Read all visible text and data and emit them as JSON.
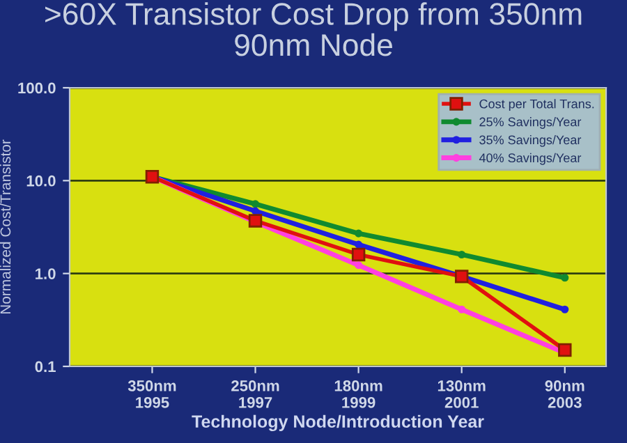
{
  "chart_data": {
    "type": "line",
    "title": ">60X Transistor Cost Drop from 350nm\n90nm Node",
    "xlabel": "Technology Node/Introduction Year",
    "ylabel": "Normalized Cost/Transistor",
    "categories": [
      "350nm\n1995",
      "250nm\n1997",
      "180nm\n1999",
      "130nm\n2001",
      "90nm\n2003"
    ],
    "series": [
      {
        "name": "Cost per Total Trans.",
        "color": "#e01010",
        "marker": "square",
        "values": [
          11,
          3.7,
          1.6,
          0.93,
          0.15
        ]
      },
      {
        "name": "25% Savings/Year",
        "color": "#108a30",
        "marker": "circle",
        "values": [
          11,
          5.6,
          2.7,
          1.6,
          0.9
        ]
      },
      {
        "name": "35% Savings/Year",
        "color": "#2020e0",
        "marker": "circle",
        "values": [
          11,
          4.7,
          2.05,
          0.93,
          0.41
        ]
      },
      {
        "name": "40% Savings/Year",
        "color": "#ff40e0",
        "marker": "circle",
        "values": [
          11,
          3.6,
          1.23,
          0.41,
          0.14
        ]
      }
    ],
    "log": true,
    "ylim": [
      0.1,
      100
    ],
    "yticks": [
      {
        "value": 0.1,
        "label": "0.1"
      },
      {
        "value": 1,
        "label": "1.0"
      },
      {
        "value": 10,
        "label": "10.0"
      },
      {
        "value": 100,
        "label": "100.0"
      }
    ],
    "grid": "y",
    "legend": "top right"
  }
}
